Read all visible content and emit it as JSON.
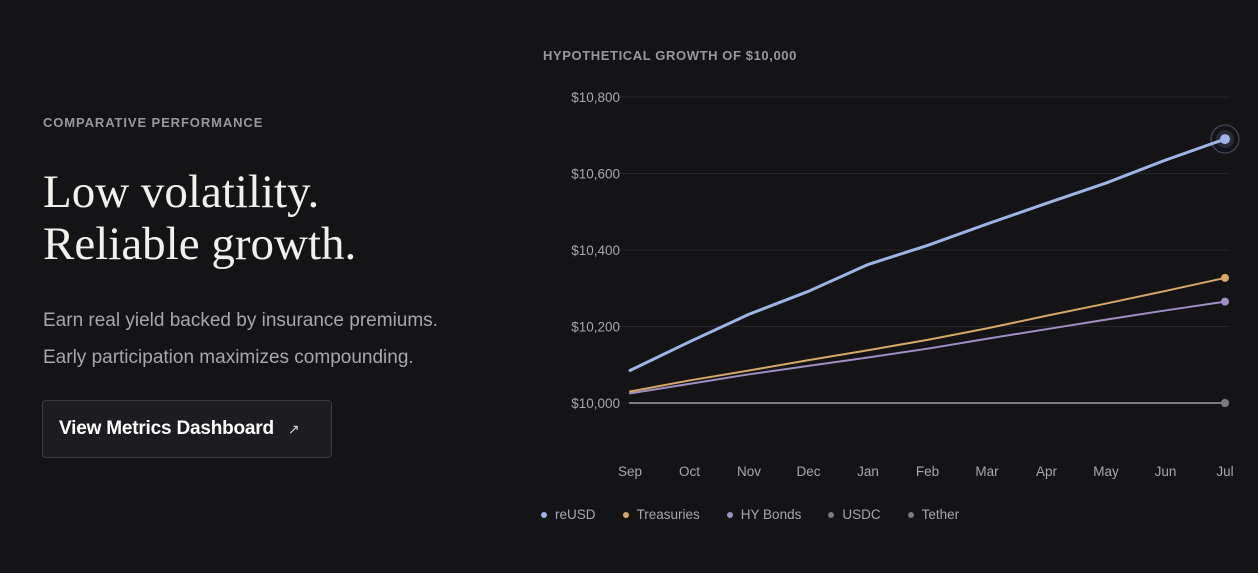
{
  "hero": {
    "eyebrow": "COMPARATIVE PERFORMANCE",
    "headline_line1": "Low volatility.",
    "headline_line2": "Reliable growth.",
    "sub_line1": "Earn real yield backed by insurance premiums.",
    "sub_line2": "Early participation maximizes compounding.",
    "cta_label": "View Metrics Dashboard",
    "cta_icon": "arrow-up-right-icon"
  },
  "colors": {
    "background": "#141316",
    "reUSD": "#9db4e6",
    "Treasuries": "#d8a86a",
    "HY Bonds": "#a08fc4",
    "USDC": "#7a7a7f",
    "Tether": "#7a7a7f"
  },
  "chart_data": {
    "type": "line",
    "title": "HYPOTHETICAL GROWTH OF $10,000",
    "xlabel": "",
    "ylabel": "",
    "x": [
      "Sep",
      "Oct",
      "Nov",
      "Dec",
      "Jan",
      "Feb",
      "Mar",
      "Apr",
      "May",
      "Jun",
      "Jul"
    ],
    "ylim": [
      9900,
      10800
    ],
    "yticks": [
      10000,
      10200,
      10400,
      10600,
      10800
    ],
    "ytick_labels": [
      "$10,000",
      "$10,200",
      "$10,400",
      "$10,600",
      "$10,800"
    ],
    "grid": true,
    "legend_position": "bottom",
    "highlight_last_point": "reUSD",
    "series": [
      {
        "name": "reUSD",
        "values": [
          10085,
          10160,
          10232,
          10292,
          10362,
          10412,
          10468,
          10522,
          10575,
          10635,
          10690
        ]
      },
      {
        "name": "Treasuries",
        "values": [
          10030,
          10059,
          10085,
          10112,
          10138,
          10165,
          10195,
          10228,
          10260,
          10293,
          10327
        ]
      },
      {
        "name": "HY Bonds",
        "values": [
          10025,
          10050,
          10075,
          10097,
          10119,
          10142,
          10168,
          10193,
          10218,
          10242,
          10265
        ]
      },
      {
        "name": "USDC",
        "values": [
          10000,
          10000,
          10000,
          10000,
          10000,
          10000,
          10000,
          10000,
          10000,
          10000,
          10000
        ]
      },
      {
        "name": "Tether",
        "values": [
          10000,
          10000,
          10000,
          10000,
          10000,
          10000,
          10000,
          10000,
          10000,
          10000,
          10000
        ]
      }
    ]
  }
}
